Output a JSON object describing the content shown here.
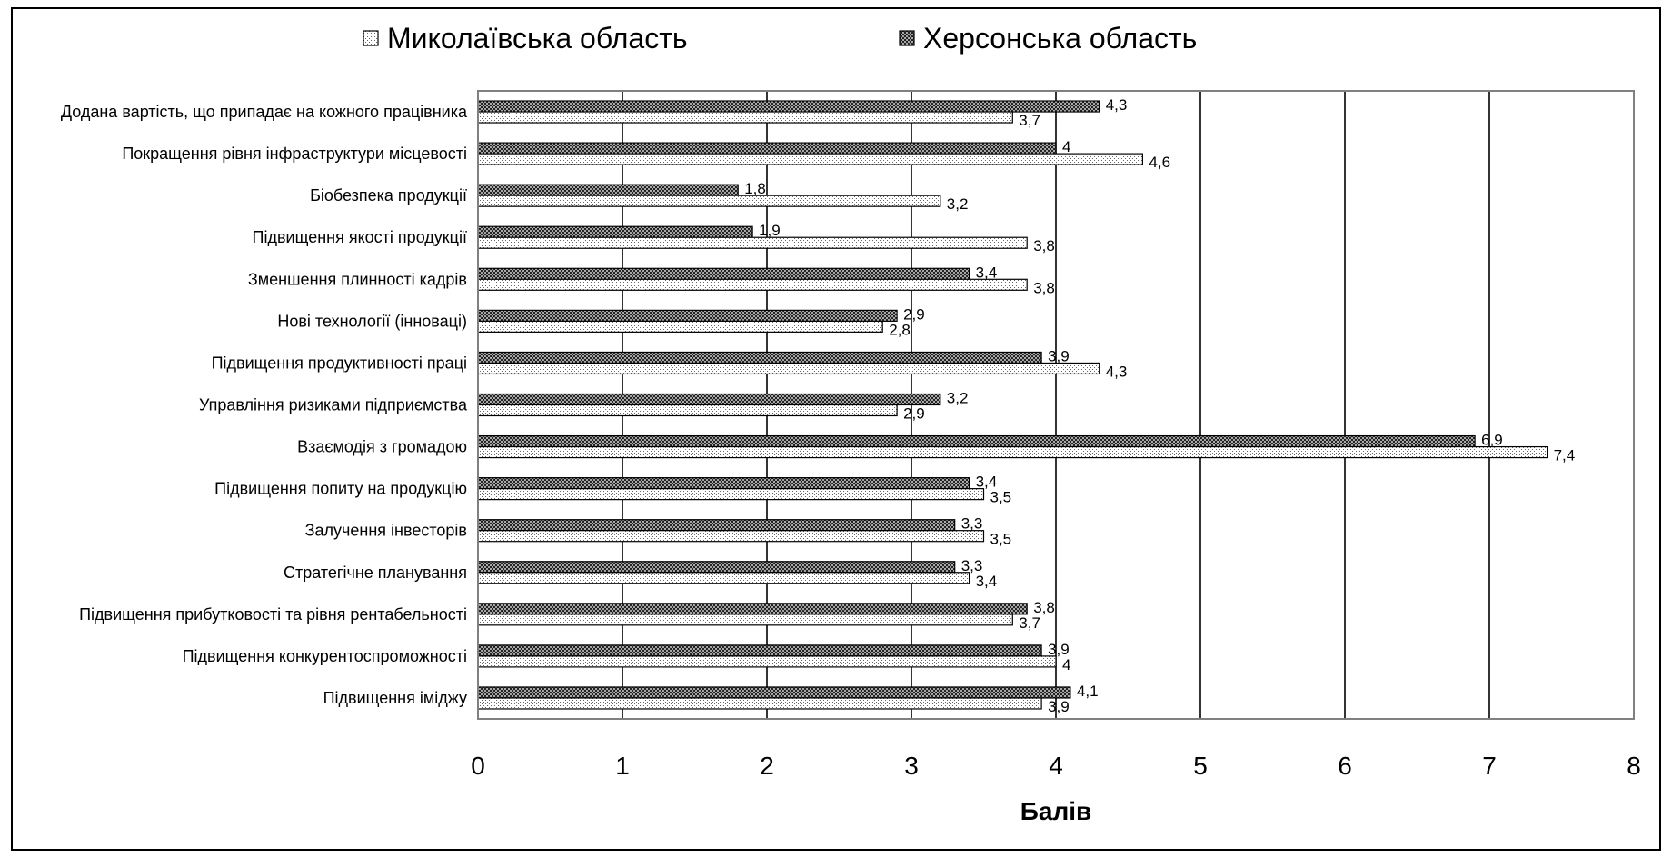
{
  "chart_data": {
    "type": "bar",
    "orientation": "horizontal",
    "xlabel": "Балів",
    "xlim": [
      0,
      8
    ],
    "xticks": [
      "0",
      "1",
      "2",
      "3",
      "4",
      "5",
      "6",
      "7",
      "8"
    ],
    "grid": "vertical",
    "legend_position": "top",
    "categories": [
      "Додана вартість, що припадає на кожного працівника",
      "Покращення рівня інфраструктури місцевості",
      "Біобезпека продукції",
      "Підвищення якості продукції",
      "Зменшення плинності кадрів",
      "Нові технології (інноваці)",
      "Підвищення продуктивності праці",
      "Управління ризиками підприємства",
      "Взаємодія з громадою",
      "Підвищення попиту на продукцію",
      "Залучення інвесторів",
      "Стратегічне планування",
      "Підвищення прибутковості та рівня рентабельності",
      "Підвищення конкурентоспроможності",
      "Підвищення іміджу"
    ],
    "series": [
      {
        "name": "Миколаївська область",
        "pattern": "light-dots",
        "values": [
          3.7,
          4.6,
          3.2,
          3.8,
          3.8,
          2.8,
          4.3,
          2.9,
          7.4,
          3.5,
          3.5,
          3.4,
          3.7,
          4,
          3.9
        ],
        "labels": [
          "3,7",
          "4,6",
          "3,2",
          "3,8",
          "3,8",
          "2,8",
          "4,3",
          "2,9",
          "7,4",
          "3,5",
          "3,5",
          "3,4",
          "3,7",
          "4",
          "3,9"
        ]
      },
      {
        "name": "Херсонська область",
        "pattern": "dark-crosshatch",
        "values": [
          4.3,
          4,
          1.8,
          1.9,
          3.4,
          2.9,
          3.9,
          3.2,
          6.9,
          3.4,
          3.3,
          3.3,
          3.8,
          3.9,
          4.1
        ],
        "labels": [
          "4,3",
          "4",
          "1,8",
          "1,9",
          "3,4",
          "2,9",
          "3,9",
          "3,2",
          "6,9",
          "3,4",
          "3,3",
          "3,3",
          "3,8",
          "3,9",
          "4,1"
        ]
      }
    ]
  },
  "colors": {
    "border": "#000000",
    "plot_border": "#808080",
    "gridline": "#000000",
    "light_series_fill": "#ffffff",
    "dark_series_fill": "#555555"
  }
}
